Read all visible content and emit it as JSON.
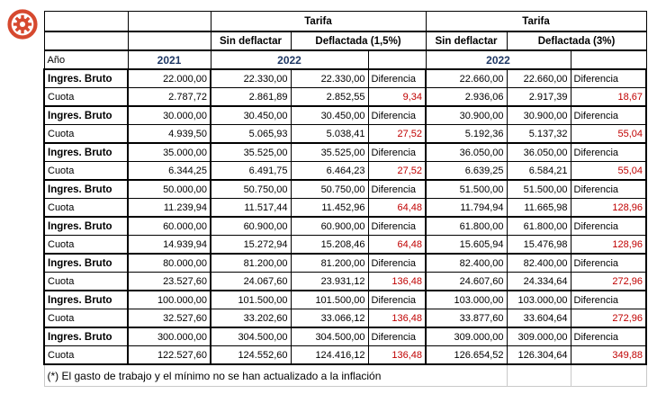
{
  "icon": {
    "name": "settings-gear",
    "color": "#d6492f"
  },
  "colors": {
    "year_header": "#1f3864",
    "difference_value": "#c00000",
    "border": "#000000"
  },
  "table": {
    "header": {
      "tarifa": "Tarifa",
      "sin_deflactar": "Sin deflactar",
      "deflactada_15": "Deflactada (1,5%)",
      "deflactada_3": "Deflactada (3%)",
      "anio": "Año",
      "y2021": "2021",
      "y2022": "2022",
      "diferencia": "Diferencia"
    },
    "row_labels": {
      "ingreso": "Ingres. Bruto",
      "cuota": "Cuota"
    },
    "groups": [
      {
        "bruto": [
          "22.000,00",
          "22.330,00",
          "22.330,00",
          "22.660,00",
          "22.660,00"
        ],
        "cuota": [
          "2.787,72",
          "2.861,89",
          "2.852,55",
          "9,34",
          "2.936,06",
          "2.917,39",
          "18,67"
        ]
      },
      {
        "bruto": [
          "30.000,00",
          "30.450,00",
          "30.450,00",
          "30.900,00",
          "30.900,00"
        ],
        "cuota": [
          "4.939,50",
          "5.065,93",
          "5.038,41",
          "27,52",
          "5.192,36",
          "5.137,32",
          "55,04"
        ]
      },
      {
        "bruto": [
          "35.000,00",
          "35.525,00",
          "35.525,00",
          "36.050,00",
          "36.050,00"
        ],
        "cuota": [
          "6.344,25",
          "6.491,75",
          "6.464,23",
          "27,52",
          "6.639,25",
          "6.584,21",
          "55,04"
        ]
      },
      {
        "bruto": [
          "50.000,00",
          "50.750,00",
          "50.750,00",
          "51.500,00",
          "51.500,00"
        ],
        "cuota": [
          "11.239,94",
          "11.517,44",
          "11.452,96",
          "64,48",
          "11.794,94",
          "11.665,98",
          "128,96"
        ]
      },
      {
        "bruto": [
          "60.000,00",
          "60.900,00",
          "60.900,00",
          "61.800,00",
          "61.800,00"
        ],
        "cuota": [
          "14.939,94",
          "15.272,94",
          "15.208,46",
          "64,48",
          "15.605,94",
          "15.476,98",
          "128,96"
        ]
      },
      {
        "bruto": [
          "80.000,00",
          "81.200,00",
          "81.200,00",
          "82.400,00",
          "82.400,00"
        ],
        "cuota": [
          "23.527,60",
          "24.067,60",
          "23.931,12",
          "136,48",
          "24.607,60",
          "24.334,64",
          "272,96"
        ]
      },
      {
        "bruto": [
          "100.000,00",
          "101.500,00",
          "101.500,00",
          "103.000,00",
          "103.000,00"
        ],
        "cuota": [
          "32.527,60",
          "33.202,60",
          "33.066,12",
          "136,48",
          "33.877,60",
          "33.604,64",
          "272,96"
        ]
      },
      {
        "bruto": [
          "300.000,00",
          "304.500,00",
          "304.500,00",
          "309.000,00",
          "309.000,00"
        ],
        "cuota": [
          "122.527,60",
          "124.552,60",
          "124.416,12",
          "136,48",
          "126.654,52",
          "126.304,64",
          "349,88"
        ]
      }
    ],
    "footnote": "(*) El gasto de trabajo y el mínimo no se han actualizado a la inflación"
  }
}
